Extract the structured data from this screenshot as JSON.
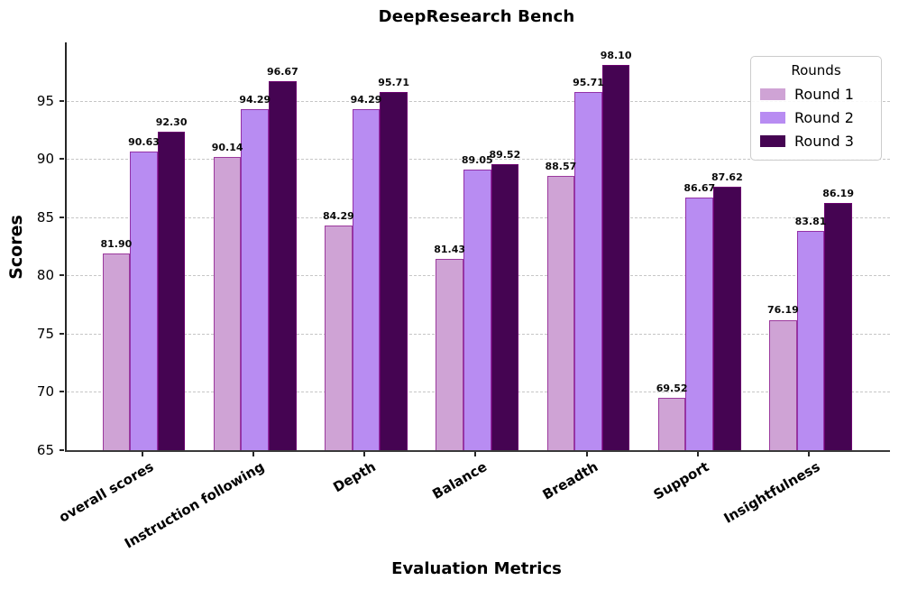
{
  "chart_title": "DeepResearch Bench",
  "axes": {
    "x_label": "Evaluation Metrics",
    "y_label": "Scores",
    "y_ticks": [
      65,
      70,
      75,
      80,
      85,
      90,
      95
    ],
    "y_min": 65,
    "y_max": 100
  },
  "legend": {
    "title": "Rounds",
    "entries": [
      {
        "label": "Round 1",
        "color": "#cfa3d5"
      },
      {
        "label": "Round 2",
        "color": "#b88cf2"
      },
      {
        "label": "Round 3",
        "color": "#450452"
      }
    ]
  },
  "chart_data": {
    "type": "bar",
    "title": "DeepResearch Bench",
    "xlabel": "Evaluation Metrics",
    "ylabel": "Scores",
    "ylim": [
      65,
      100
    ],
    "grid": "horizontal-dashed",
    "legend_position": "upper-right",
    "bar_edge_color": "#800080",
    "categories": [
      "overall scores",
      "Instruction following",
      "Depth",
      "Balance",
      "Breadth",
      "Support",
      "Insightfulness"
    ],
    "series": [
      {
        "name": "Round 1",
        "color": "#cfa3d5",
        "values": [
          81.9,
          90.14,
          84.29,
          81.43,
          88.57,
          69.52,
          76.19
        ],
        "labels": [
          "81.90",
          "90.14",
          "84.29",
          "81.43",
          "88.57",
          "69.52",
          "76.19"
        ]
      },
      {
        "name": "Round 2",
        "color": "#b88cf2",
        "values": [
          90.63,
          94.29,
          94.29,
          89.05,
          95.71,
          86.67,
          83.81
        ],
        "labels": [
          "90.63",
          "94.29",
          "94.29",
          "89.05",
          "95.71",
          "86.67",
          "83.81"
        ]
      },
      {
        "name": "Round 3",
        "color": "#450452",
        "values": [
          92.3,
          96.67,
          95.71,
          89.52,
          98.1,
          87.62,
          86.19
        ],
        "labels": [
          "92.30",
          "96.67",
          "95.71",
          "89.52",
          "98.10",
          "87.62",
          "86.19"
        ]
      }
    ]
  }
}
